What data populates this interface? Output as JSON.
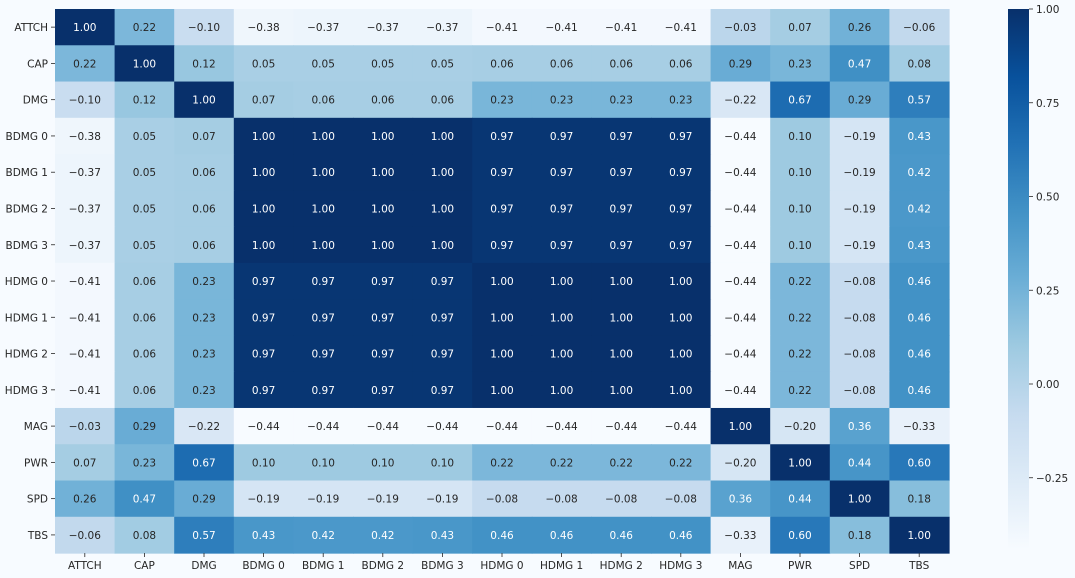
{
  "chart_data": {
    "type": "heatmap",
    "labels": [
      "ATTCH",
      "CAP",
      "DMG",
      "BDMG 0",
      "BDMG 1",
      "BDMG 2",
      "BDMG 3",
      "HDMG 0",
      "HDMG 1",
      "HDMG 2",
      "HDMG 3",
      "MAG",
      "PWR",
      "SPD",
      "TBS"
    ],
    "matrix": [
      [
        1.0,
        0.22,
        -0.1,
        -0.38,
        -0.37,
        -0.37,
        -0.37,
        -0.41,
        -0.41,
        -0.41,
        -0.41,
        -0.03,
        0.07,
        0.26,
        -0.06
      ],
      [
        0.22,
        1.0,
        0.12,
        0.05,
        0.05,
        0.05,
        0.05,
        0.06,
        0.06,
        0.06,
        0.06,
        0.29,
        0.23,
        0.47,
        0.08
      ],
      [
        -0.1,
        0.12,
        1.0,
        0.07,
        0.06,
        0.06,
        0.06,
        0.23,
        0.23,
        0.23,
        0.23,
        -0.22,
        0.67,
        0.29,
        0.57
      ],
      [
        -0.38,
        0.05,
        0.07,
        1.0,
        1.0,
        1.0,
        1.0,
        0.97,
        0.97,
        0.97,
        0.97,
        -0.44,
        0.1,
        -0.19,
        0.43
      ],
      [
        -0.37,
        0.05,
        0.06,
        1.0,
        1.0,
        1.0,
        1.0,
        0.97,
        0.97,
        0.97,
        0.97,
        -0.44,
        0.1,
        -0.19,
        0.42
      ],
      [
        -0.37,
        0.05,
        0.06,
        1.0,
        1.0,
        1.0,
        1.0,
        0.97,
        0.97,
        0.97,
        0.97,
        -0.44,
        0.1,
        -0.19,
        0.42
      ],
      [
        -0.37,
        0.05,
        0.06,
        1.0,
        1.0,
        1.0,
        1.0,
        0.97,
        0.97,
        0.97,
        0.97,
        -0.44,
        0.1,
        -0.19,
        0.43
      ],
      [
        -0.41,
        0.06,
        0.23,
        0.97,
        0.97,
        0.97,
        0.97,
        1.0,
        1.0,
        1.0,
        1.0,
        -0.44,
        0.22,
        -0.08,
        0.46
      ],
      [
        -0.41,
        0.06,
        0.23,
        0.97,
        0.97,
        0.97,
        0.97,
        1.0,
        1.0,
        1.0,
        1.0,
        -0.44,
        0.22,
        -0.08,
        0.46
      ],
      [
        -0.41,
        0.06,
        0.23,
        0.97,
        0.97,
        0.97,
        0.97,
        1.0,
        1.0,
        1.0,
        1.0,
        -0.44,
        0.22,
        -0.08,
        0.46
      ],
      [
        -0.41,
        0.06,
        0.23,
        0.97,
        0.97,
        0.97,
        0.97,
        1.0,
        1.0,
        1.0,
        1.0,
        -0.44,
        0.22,
        -0.08,
        0.46
      ],
      [
        -0.03,
        0.29,
        -0.22,
        -0.44,
        -0.44,
        -0.44,
        -0.44,
        -0.44,
        -0.44,
        -0.44,
        -0.44,
        1.0,
        -0.2,
        0.36,
        -0.33
      ],
      [
        0.07,
        0.23,
        0.67,
        0.1,
        0.1,
        0.1,
        0.1,
        0.22,
        0.22,
        0.22,
        0.22,
        -0.2,
        1.0,
        0.44,
        0.6
      ],
      [
        0.26,
        0.47,
        0.29,
        -0.19,
        -0.19,
        -0.19,
        -0.19,
        -0.08,
        -0.08,
        -0.08,
        -0.08,
        0.36,
        0.44,
        1.0,
        0.18
      ],
      [
        -0.06,
        0.08,
        0.57,
        0.43,
        0.42,
        0.42,
        0.43,
        0.46,
        0.46,
        0.46,
        0.46,
        -0.33,
        0.6,
        0.18,
        1.0
      ]
    ],
    "value_range": [
      -0.44,
      1.0
    ],
    "colorbar_ticks": [
      "1.00",
      "0.75",
      "0.50",
      "0.25",
      "0.00",
      "−0.25"
    ],
    "colorbar_tick_values": [
      1.0,
      0.75,
      0.5,
      0.25,
      0.0,
      -0.25
    ],
    "colormap": "Blues",
    "colors": {
      "low": "#f7fbff",
      "high": "#08306b",
      "text_dark": "#262626",
      "text_light": "#ffffff"
    },
    "title": "",
    "xlabel": "",
    "ylabel": ""
  }
}
